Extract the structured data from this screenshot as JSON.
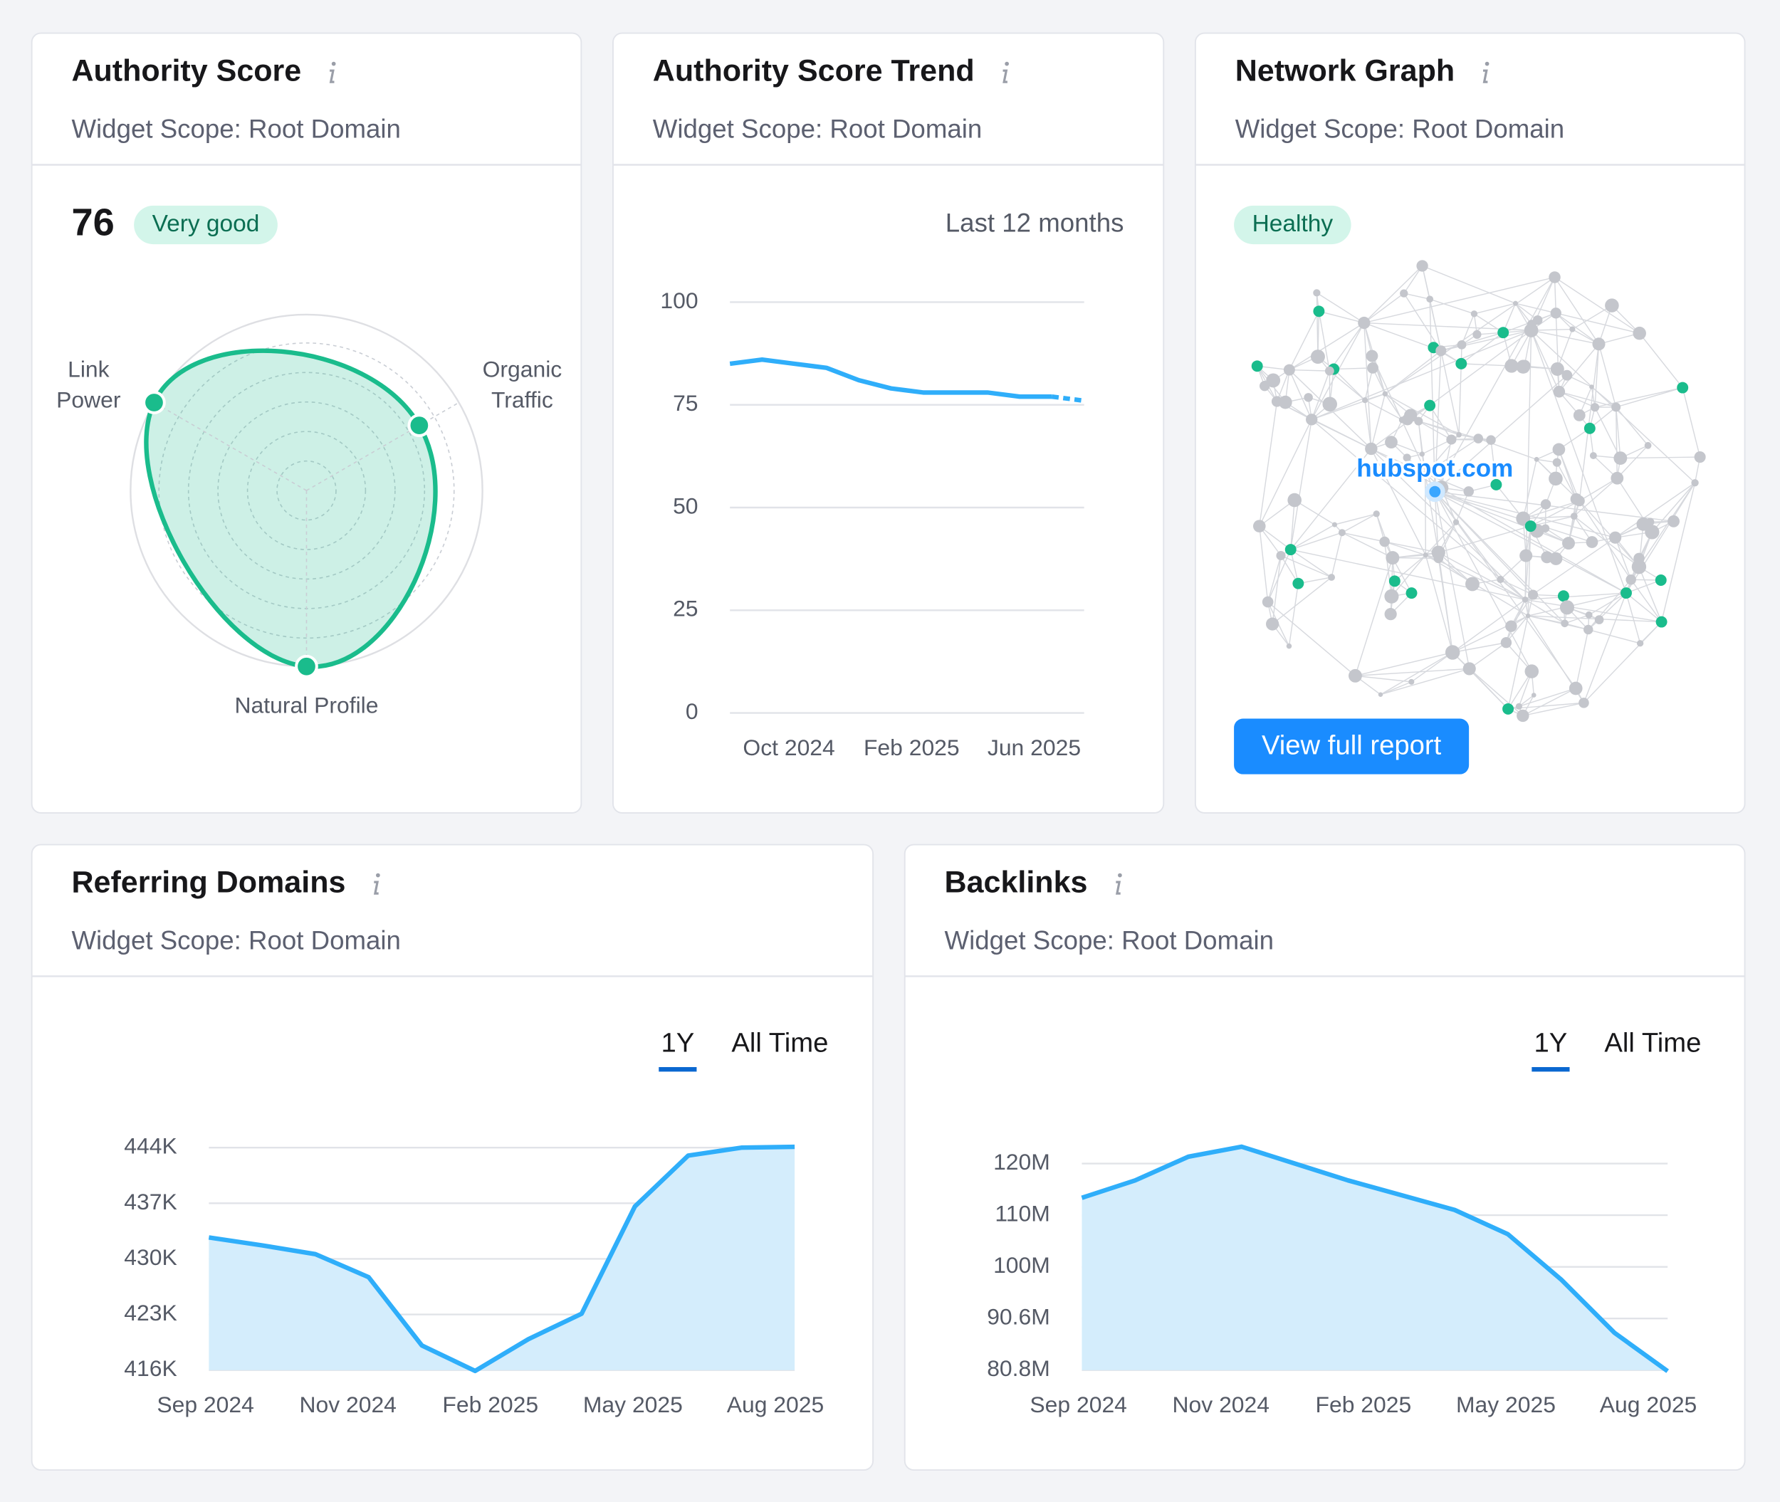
{
  "widgets": [
    {
      "title": "Authority Score",
      "subtitle": "Widget Scope: Root Domain",
      "score": 76,
      "badge": "Very good",
      "chart_data": {
        "type": "radar",
        "axes": [
          "Link Power",
          "Organic Traffic",
          "Natural Profile"
        ],
        "values": [
          100,
          74,
          100
        ],
        "rlim": [
          0,
          100
        ],
        "color": "#1abc8c"
      }
    },
    {
      "title": "Authority Score Trend",
      "subtitle": "Widget Scope: Root Domain",
      "period": "Last 12 months",
      "chart_data": {
        "type": "line",
        "xlabels": [
          "Oct 2024",
          "Feb 2025",
          "Jun 2025"
        ],
        "values": [
          85,
          86,
          85,
          84,
          81,
          79,
          78,
          78,
          78,
          77,
          77,
          76
        ],
        "ylim": [
          0,
          100
        ],
        "yticks": [
          0,
          25,
          50,
          75,
          100
        ],
        "grid": true,
        "color": "#2faefa",
        "last_segment_dashed": true
      }
    },
    {
      "title": "Network Graph",
      "subtitle": "Widget Scope: Root Domain",
      "badge": "Healthy",
      "node_label": "hubspot.com",
      "button": "View full report"
    },
    {
      "title": "Referring Domains",
      "subtitle": "Widget Scope: Root Domain",
      "tabs": [
        "1Y",
        "All Time"
      ],
      "active_tab": 0,
      "chart_data": {
        "type": "area",
        "xlabels": [
          "Sep 2024",
          "Nov 2024",
          "Feb 2025",
          "May 2025",
          "Aug 2025"
        ],
        "values": [
          432700,
          431700,
          430600,
          427700,
          419100,
          415900,
          419900,
          423100,
          436600,
          443000,
          444000,
          444100
        ],
        "ylim": [
          416000,
          444000
        ],
        "yticks": [
          {
            "value": 416000,
            "label": "416K"
          },
          {
            "value": 423000,
            "label": "423K"
          },
          {
            "value": 430000,
            "label": "430K"
          },
          {
            "value": 437000,
            "label": "437K"
          },
          {
            "value": 444000,
            "label": "444K"
          }
        ],
        "grid": true,
        "color": "#2faefa",
        "fill": "#d4edfc"
      }
    },
    {
      "title": "Backlinks",
      "subtitle": "Widget Scope: Root Domain",
      "tabs": [
        "1Y",
        "All Time"
      ],
      "active_tab": 0,
      "chart_data": {
        "type": "area",
        "xlabels": [
          "Sep 2024",
          "Nov 2024",
          "Feb 2025",
          "May 2025",
          "Aug 2025"
        ],
        "values": [
          113500000,
          116800000,
          121300000,
          123200000,
          120000000,
          116800000,
          114000000,
          111200000,
          106600000,
          98000000,
          87900000,
          80600000
        ],
        "ylim": [
          80800000,
          120000000
        ],
        "yticks": [
          {
            "value": 80800000,
            "label": "80.8M"
          },
          {
            "value": 90600000,
            "label": "90.6M"
          },
          {
            "value": 100400000,
            "label": "100M"
          },
          {
            "value": 110200000,
            "label": "110M"
          },
          {
            "value": 120000000,
            "label": "120M"
          }
        ],
        "grid": true,
        "color": "#2faefa",
        "fill": "#d4edfc"
      }
    }
  ]
}
